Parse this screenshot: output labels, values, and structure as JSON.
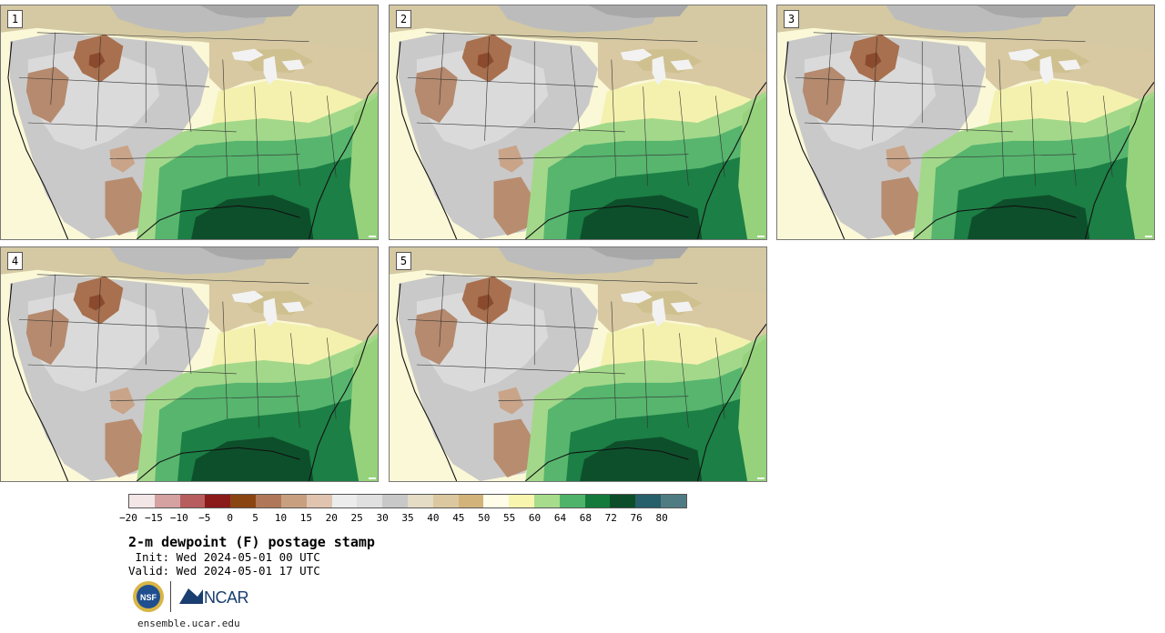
{
  "panels": [
    {
      "label": "1"
    },
    {
      "label": "2"
    },
    {
      "label": "3"
    },
    {
      "label": "4"
    },
    {
      "label": "5"
    }
  ],
  "colorbar": {
    "colors": [
      "#f3e6e6",
      "#d5a1a1",
      "#b85d5d",
      "#8b1a1a",
      "#8b4513",
      "#b07858",
      "#c8a080",
      "#e0c4b0",
      "#ececec",
      "#e0e0e0",
      "#c8c8c8",
      "#e4dcc4",
      "#dcc8a0",
      "#d2b47a",
      "#fffde8",
      "#f7f5ae",
      "#a6dc8c",
      "#4fb46a",
      "#137a3c",
      "#0c4e2a",
      "#275f6a",
      "#4f7c82"
    ],
    "ticks": [
      "−20",
      "−15",
      "−10",
      "−5",
      "0",
      "5",
      "10",
      "15",
      "20",
      "25",
      "30",
      "35",
      "40",
      "45",
      "50",
      "55",
      "60",
      "64",
      "68",
      "72",
      "76",
      "80"
    ]
  },
  "title": "2-m dewpoint (F) postage stamp",
  "init": " Init: Wed 2024-05-01 00 UTC",
  "valid": "Valid: Wed 2024-05-01 17 UTC",
  "logos": {
    "nsf": "NSF",
    "ncar": "NCAR"
  },
  "website": "ensemble.ucar.edu"
}
